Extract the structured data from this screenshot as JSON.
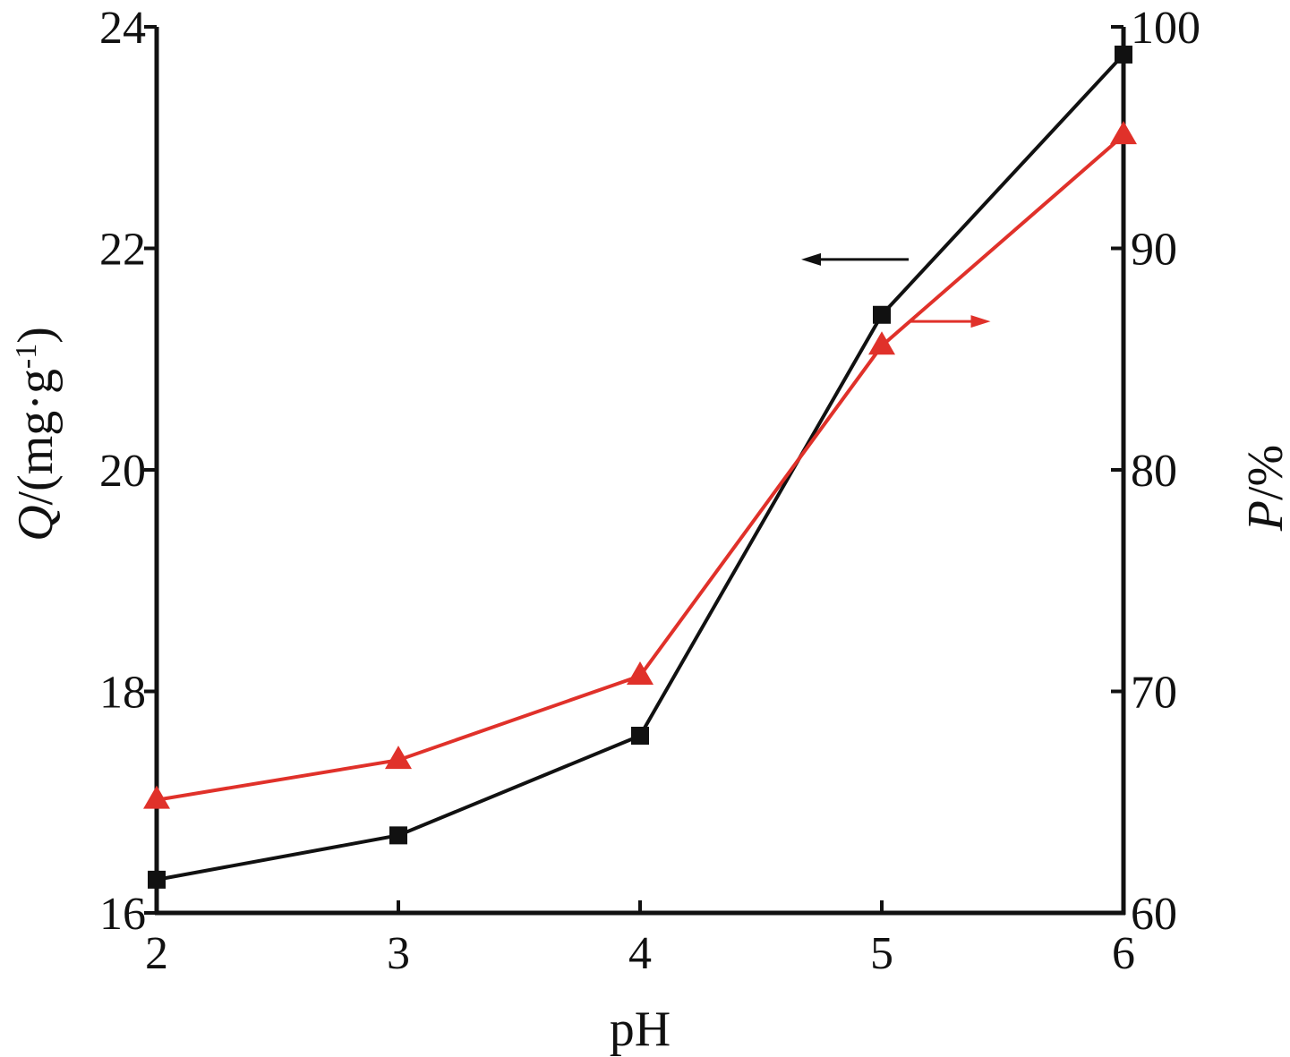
{
  "chart_data": {
    "type": "line",
    "x": [
      2,
      3,
      4,
      5,
      6
    ],
    "xlabel": "pH",
    "xlim": [
      2,
      6
    ],
    "xticks": [
      "2",
      "3",
      "4",
      "5",
      "6"
    ],
    "left_axis": {
      "label_italic": "Q",
      "label_rest": "/(mg·g",
      "label_sup": "-1",
      "label_close": ")",
      "ylim": [
        16,
        24
      ],
      "ticks": [
        "16",
        "18",
        "20",
        "22",
        "24"
      ]
    },
    "right_axis": {
      "label_italic": "P",
      "label_rest": "/%",
      "ylim": [
        60,
        100
      ],
      "ticks": [
        "60",
        "70",
        "80",
        "90",
        "100"
      ]
    },
    "series": [
      {
        "axis": "left",
        "marker": "square",
        "color": "#111111",
        "values": [
          16.3,
          16.7,
          17.6,
          21.4,
          23.75
        ]
      },
      {
        "axis": "right",
        "marker": "triangle",
        "color": "#e0312a",
        "values": [
          65.1,
          66.9,
          70.7,
          85.6,
          95.1
        ]
      }
    ],
    "annotations": [
      {
        "type": "arrow",
        "direction": "left",
        "color": "#111111",
        "series": 0
      },
      {
        "type": "arrow",
        "direction": "right",
        "color": "#e0312a",
        "series": 1
      }
    ],
    "grid": false,
    "legend": "none"
  }
}
